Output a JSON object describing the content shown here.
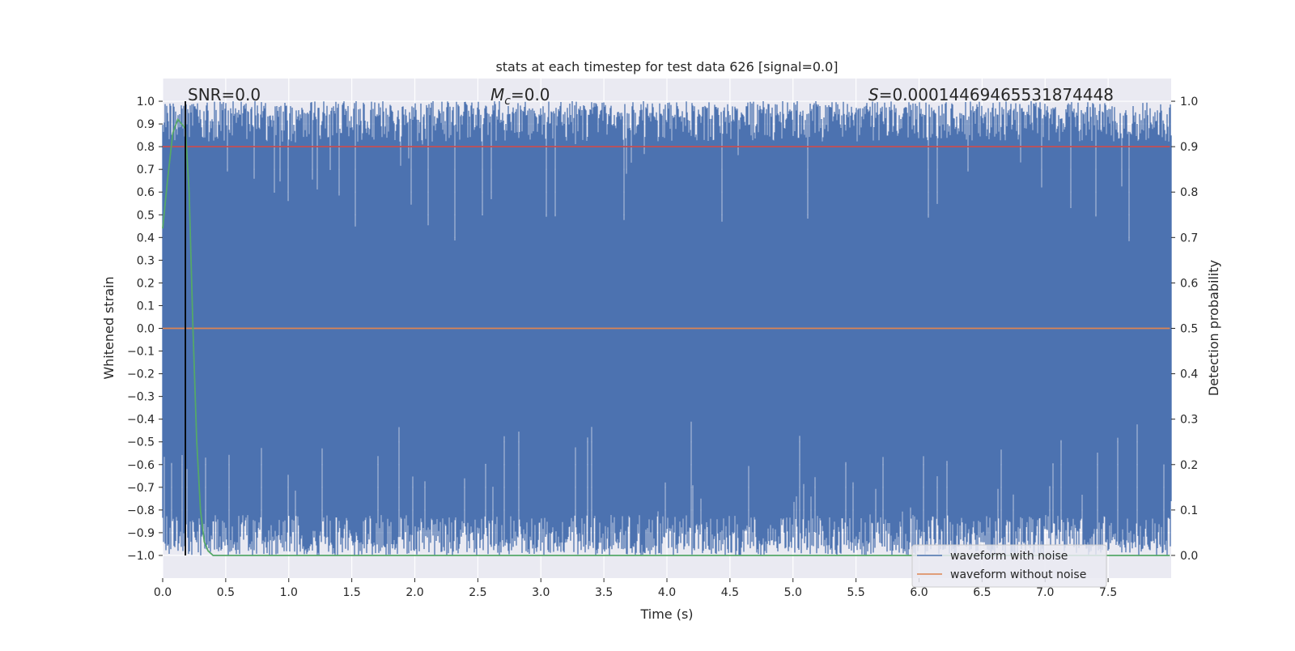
{
  "chart_data": {
    "type": "line",
    "title": "stats at each timestep for test data 626 [signal=0.0]",
    "xlabel": "Time (s)",
    "ylabel": "Whitened strain",
    "y2label": "Detection probability",
    "xlim": [
      0.0,
      8.0
    ],
    "ylim": [
      -1.1,
      1.1
    ],
    "y2lim": [
      -0.05,
      1.05
    ],
    "xticks": [
      0.0,
      0.5,
      1.0,
      1.5,
      2.0,
      2.5,
      3.0,
      3.5,
      4.0,
      4.5,
      5.0,
      5.5,
      6.0,
      6.5,
      7.0,
      7.5
    ],
    "yticks": [
      -1.0,
      -0.9,
      -0.8,
      -0.7,
      -0.6,
      -0.5,
      -0.4,
      -0.3,
      -0.2,
      -0.1,
      0.0,
      0.1,
      0.2,
      0.3,
      0.4,
      0.5,
      0.6,
      0.7,
      0.8,
      0.9,
      1.0
    ],
    "y2ticks": [
      0.0,
      0.1,
      0.2,
      0.3,
      0.4,
      0.5,
      0.6,
      0.7,
      0.8,
      0.9,
      1.0
    ],
    "grid": true,
    "legend_position": "bottom-right",
    "annotations": {
      "snr": "SNR=0.0",
      "mc_symbol": "M",
      "mc_sub": "c",
      "mc_value": "=0.0",
      "s_symbol": "S",
      "s_value": "=0.00014469465531874448"
    },
    "vertical_line_x": 0.18,
    "series": [
      {
        "name": "waveform with noise",
        "axis": "left",
        "color": "#4c72b0",
        "envelope_low_typical": -0.93,
        "envelope_high_typical": 0.93,
        "min": -1.0,
        "max": 1.0
      },
      {
        "name": "waveform without noise",
        "axis": "left",
        "color": "#dd8452",
        "x": [
          0.0,
          7.99
        ],
        "y": [
          0.0,
          0.0
        ]
      },
      {
        "axis": "right",
        "color": "#c44e52",
        "x": [
          0.0,
          7.99
        ],
        "y": [
          0.9,
          0.9
        ]
      },
      {
        "axis": "right",
        "color": "#55a868",
        "x": [
          0.0,
          0.04,
          0.08,
          0.12,
          0.15,
          0.18,
          0.21,
          0.24,
          0.27,
          0.3,
          0.33,
          0.36,
          0.4,
          1.0,
          2.0,
          3.0,
          4.0,
          5.0,
          6.0,
          7.0,
          7.99
        ],
        "y": [
          0.72,
          0.83,
          0.93,
          0.96,
          0.95,
          0.94,
          0.8,
          0.5,
          0.25,
          0.1,
          0.03,
          0.01,
          0.0,
          0.0,
          0.0,
          0.0,
          0.0,
          0.0,
          0.0,
          0.0,
          0.0
        ]
      }
    ]
  }
}
